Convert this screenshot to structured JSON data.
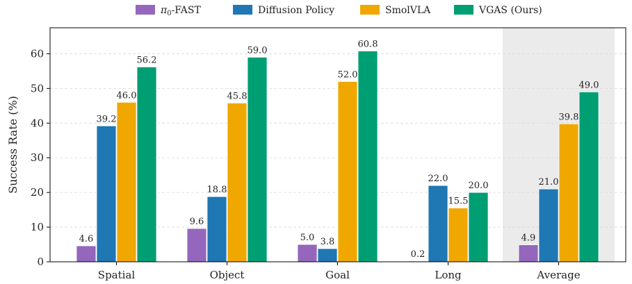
{
  "chart_data": {
    "type": "bar",
    "categories": [
      "Spatial",
      "Object",
      "Goal",
      "Long",
      "Average"
    ],
    "highlighted_category": "Average",
    "highlight_color": "#ebebeb",
    "series": [
      {
        "name": "π0-FAST",
        "legend_main": "π",
        "legend_sub": "0",
        "legend_rest": "-FAST",
        "color": "#9467bd",
        "values": [
          4.6,
          9.6,
          5.0,
          0.2,
          4.9
        ]
      },
      {
        "name": "Diffusion Policy",
        "color": "#1f77b4",
        "values": [
          39.2,
          18.8,
          3.8,
          22.0,
          21.0
        ]
      },
      {
        "name": "SmolVLA",
        "color": "#f0a800",
        "values": [
          46.0,
          45.8,
          52.0,
          15.5,
          39.8
        ]
      },
      {
        "name": "VGAS (Ours)",
        "color": "#009e73",
        "values": [
          56.2,
          59.0,
          60.8,
          20.0,
          49.0
        ]
      }
    ],
    "ylabel": "Success Rate (%)",
    "ylim": [
      0,
      67.5
    ],
    "yticks": [
      0,
      10,
      20,
      30,
      40,
      50,
      60
    ],
    "grid": true,
    "legend_position": "top-center"
  }
}
